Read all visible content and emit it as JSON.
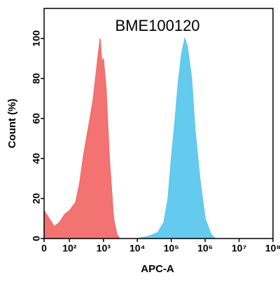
{
  "chart_data": {
    "type": "area",
    "title": "BME100120",
    "xlabel": "APC-A",
    "ylabel": "Count  (%)",
    "xlim": [
      0,
      100000000
    ],
    "ylim": [
      0,
      115
    ],
    "xticks": [
      0,
      {
        "value": 100,
        "label": "10²"
      },
      {
        "value": 1000,
        "label": "10³"
      },
      {
        "value": 10000,
        "label": "10⁴"
      },
      {
        "value": 100000,
        "label": "10⁵"
      },
      {
        "value": 1000000,
        "label": "10⁶"
      },
      {
        "value": 10000000,
        "label": "10⁷"
      },
      {
        "value": 100000000,
        "label": "10⁸"
      }
    ],
    "yticks": [
      0,
      20,
      40,
      60,
      80,
      100
    ],
    "series": [
      {
        "color": "#f26b6b",
        "x": [
          0,
          20,
          40,
          60,
          80,
          100,
          150,
          200,
          250,
          300,
          400,
          500,
          600,
          700,
          800,
          900,
          1000,
          1200,
          1500,
          2000,
          2500,
          3000
        ],
        "values": [
          14,
          10,
          6,
          8,
          12,
          14,
          18,
          28,
          40,
          48,
          60,
          70,
          82,
          92,
          100,
          88,
          90,
          75,
          40,
          10,
          2,
          0
        ]
      },
      {
        "color": "#5cc8ee",
        "x": [
          10000,
          20000,
          40000,
          60000,
          80000,
          100000,
          130000,
          160000,
          200000,
          250000,
          300000,
          400000,
          500000,
          700000,
          1000000,
          1500000,
          2000000
        ],
        "values": [
          0,
          1,
          3,
          8,
          20,
          40,
          60,
          78,
          92,
          100,
          96,
          80,
          55,
          30,
          10,
          2,
          0
        ]
      }
    ]
  }
}
